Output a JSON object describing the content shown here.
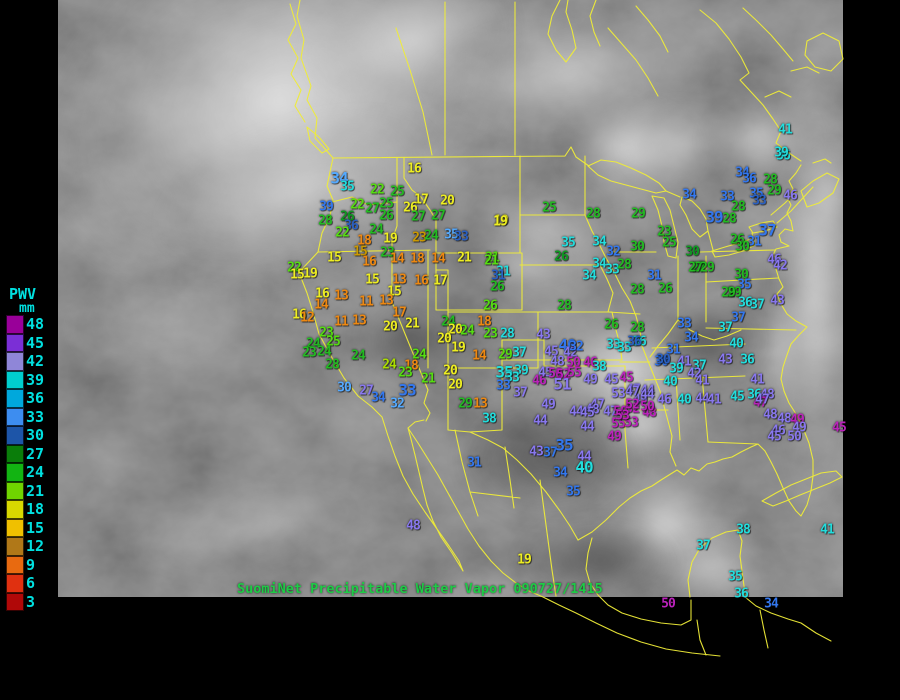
{
  "caption": "SuomiNet Precipitable Water Vapor 090727/1415",
  "colors": {
    "background": "#000000",
    "map_border_lines": "#efec38",
    "legend_text": "#00e0e0",
    "caption_text": "#1ecb46"
  },
  "legend": {
    "title": "PWV",
    "unit": "mm",
    "entries": [
      {
        "value": 48,
        "color": "#990099"
      },
      {
        "value": 45,
        "color": "#7b2fd6"
      },
      {
        "value": 42,
        "color": "#8f86d8"
      },
      {
        "value": 39,
        "color": "#00cfcf"
      },
      {
        "value": 36,
        "color": "#00a8dc"
      },
      {
        "value": 33,
        "color": "#3d8df0"
      },
      {
        "value": 30,
        "color": "#1d55a8"
      },
      {
        "value": 27,
        "color": "#0a7d0a"
      },
      {
        "value": 24,
        "color": "#12b412"
      },
      {
        "value": 21,
        "color": "#6fd400"
      },
      {
        "value": 18,
        "color": "#d8d800"
      },
      {
        "value": 15,
        "color": "#f0c000"
      },
      {
        "value": 12,
        "color": "#b07818"
      },
      {
        "value": 9,
        "color": "#e86a10"
      },
      {
        "value": 6,
        "color": "#e03010"
      },
      {
        "value": 3,
        "color": "#b00808"
      }
    ]
  },
  "palette": {
    "y": "#eeee22",
    "o": "#ee8811",
    "d": "#cc9900",
    "g": "#22bb22",
    "dg": "#0f9922",
    "bg": "#55dd11",
    "yg": "#aadd00",
    "c": "#22dddd",
    "lb": "#55aaff",
    "b": "#3377ee",
    "nv": "#2a5fc0",
    "v": "#8877ee",
    "m": "#bb22bb"
  },
  "stations": [
    [
      16,
      414,
      169,
      "y"
    ],
    [
      34,
      339,
      178,
      "lb",
      1
    ],
    [
      35,
      347,
      187,
      "c"
    ],
    [
      22,
      377,
      190,
      "bg"
    ],
    [
      25,
      397,
      192,
      "g"
    ],
    [
      17,
      421,
      200,
      "y"
    ],
    [
      20,
      447,
      201,
      "y"
    ],
    [
      22,
      357,
      205,
      "bg"
    ],
    [
      25,
      386,
      204,
      "g"
    ],
    [
      26,
      410,
      208,
      "y"
    ],
    [
      27,
      372,
      209,
      "g"
    ],
    [
      26,
      386,
      216,
      "g"
    ],
    [
      27,
      418,
      217,
      "g"
    ],
    [
      27,
      438,
      216,
      "g"
    ],
    [
      39,
      326,
      207,
      "b"
    ],
    [
      28,
      325,
      221,
      "g"
    ],
    [
      26,
      347,
      217,
      "dg"
    ],
    [
      36,
      351,
      226,
      "nv"
    ],
    [
      22,
      342,
      233,
      "bg"
    ],
    [
      24,
      376,
      230,
      "g"
    ],
    [
      18,
      364,
      241,
      "o"
    ],
    [
      19,
      390,
      239,
      "y"
    ],
    [
      23,
      419,
      238,
      "d"
    ],
    [
      24,
      431,
      236,
      "g"
    ],
    [
      35,
      451,
      235,
      "lb"
    ],
    [
      33,
      461,
      237,
      "nv"
    ],
    [
      19,
      501,
      221,
      "y"
    ],
    [
      15,
      360,
      252,
      "d"
    ],
    [
      23,
      387,
      253,
      "g"
    ],
    [
      15,
      334,
      258,
      "y"
    ],
    [
      16,
      369,
      262,
      "o"
    ],
    [
      14,
      397,
      259,
      "o"
    ],
    [
      18,
      417,
      259,
      "o"
    ],
    [
      14,
      438,
      259,
      "o"
    ],
    [
      21,
      464,
      258,
      "y"
    ],
    [
      21,
      492,
      258,
      "bg"
    ],
    [
      22,
      294,
      268,
      "bg"
    ],
    [
      15,
      297,
      275,
      "y"
    ],
    [
      19,
      310,
      274,
      "y"
    ],
    [
      31,
      503,
      272,
      "c"
    ],
    [
      15,
      372,
      280,
      "y"
    ],
    [
      13,
      399,
      280,
      "o"
    ],
    [
      16,
      421,
      281,
      "o"
    ],
    [
      17,
      440,
      281,
      "y"
    ],
    [
      16,
      322,
      294,
      "y"
    ],
    [
      13,
      341,
      296,
      "o"
    ],
    [
      15,
      394,
      292,
      "y"
    ],
    [
      14,
      321,
      305,
      "o"
    ],
    [
      11,
      366,
      302,
      "o"
    ],
    [
      13,
      386,
      301,
      "o"
    ],
    [
      16,
      299,
      315,
      "y"
    ],
    [
      12,
      307,
      318,
      "o"
    ],
    [
      11,
      341,
      322,
      "o"
    ],
    [
      13,
      359,
      321,
      "o"
    ],
    [
      17,
      399,
      313,
      "o"
    ],
    [
      20,
      390,
      327,
      "y"
    ],
    [
      21,
      412,
      324,
      "y"
    ],
    [
      23,
      326,
      333,
      "bg"
    ],
    [
      24,
      313,
      344,
      "g"
    ],
    [
      25,
      333,
      342,
      "bg"
    ],
    [
      23,
      309,
      353,
      "g"
    ],
    [
      24,
      324,
      352,
      "g"
    ],
    [
      28,
      332,
      365,
      "g"
    ],
    [
      24,
      358,
      356,
      "g"
    ],
    [
      24,
      389,
      365,
      "yg"
    ],
    [
      24,
      419,
      355,
      "bg"
    ],
    [
      18,
      411,
      366,
      "o"
    ],
    [
      23,
      405,
      373,
      "bg"
    ],
    [
      21,
      428,
      379,
      "bg"
    ],
    [
      33,
      407,
      390,
      "b",
      1
    ],
    [
      30,
      344,
      388,
      "lb"
    ],
    [
      27,
      366,
      391,
      "v"
    ],
    [
      34,
      378,
      398,
      "b"
    ],
    [
      32,
      397,
      404,
      "lb"
    ],
    [
      24,
      448,
      322,
      "g"
    ],
    [
      20,
      455,
      330,
      "y"
    ],
    [
      24,
      467,
      331,
      "bg"
    ],
    [
      20,
      444,
      339,
      "y"
    ],
    [
      19,
      458,
      348,
      "y"
    ],
    [
      14,
      479,
      356,
      "o"
    ],
    [
      20,
      450,
      371,
      "y"
    ],
    [
      20,
      455,
      385,
      "y"
    ],
    [
      29,
      465,
      404,
      "g"
    ],
    [
      13,
      480,
      404,
      "o"
    ],
    [
      18,
      484,
      322,
      "o"
    ],
    [
      23,
      490,
      334,
      "bg"
    ],
    [
      28,
      507,
      334,
      "c"
    ],
    [
      29,
      505,
      355,
      "bg"
    ],
    [
      37,
      519,
      353,
      "c"
    ],
    [
      35,
      504,
      372,
      "c",
      1
    ],
    [
      39,
      521,
      371,
      "c"
    ],
    [
      33,
      512,
      378,
      "c"
    ],
    [
      33,
      503,
      386,
      "b"
    ],
    [
      37,
      520,
      393,
      "v"
    ],
    [
      46,
      539,
      381,
      "m"
    ],
    [
      49,
      548,
      405,
      "v"
    ],
    [
      38,
      489,
      419,
      "c"
    ],
    [
      44,
      540,
      421,
      "v"
    ],
    [
      31,
      474,
      463,
      "b"
    ],
    [
      43,
      536,
      452,
      "v"
    ],
    [
      37,
      550,
      453,
      "b"
    ],
    [
      35,
      564,
      445,
      "b",
      1
    ],
    [
      34,
      560,
      473,
      "b"
    ],
    [
      40,
      584,
      467,
      "c",
      1
    ],
    [
      44,
      584,
      457,
      "v"
    ],
    [
      19,
      524,
      560,
      "y"
    ],
    [
      48,
      413,
      526,
      "v"
    ],
    [
      35,
      573,
      492,
      "b"
    ],
    [
      43,
      543,
      335,
      "v"
    ],
    [
      45,
      551,
      352,
      "v"
    ],
    [
      40,
      567,
      345,
      "b",
      1
    ],
    [
      42,
      570,
      353,
      "v"
    ],
    [
      48,
      557,
      362,
      "v"
    ],
    [
      50,
      573,
      363,
      "m"
    ],
    [
      46,
      590,
      363,
      "m"
    ],
    [
      38,
      599,
      367,
      "c"
    ],
    [
      45,
      545,
      373,
      "v"
    ],
    [
      50,
      555,
      374,
      "m"
    ],
    [
      52,
      563,
      375,
      "m"
    ],
    [
      55,
      574,
      373,
      "m"
    ],
    [
      51,
      562,
      384,
      "v",
      1
    ],
    [
      49,
      590,
      380,
      "v"
    ],
    [
      45,
      611,
      380,
      "v"
    ],
    [
      33,
      613,
      345,
      "c"
    ],
    [
      33,
      624,
      348,
      "c"
    ],
    [
      36,
      639,
      342,
      "c"
    ],
    [
      30,
      661,
      362,
      "b"
    ],
    [
      53,
      618,
      394,
      "v"
    ],
    [
      47,
      633,
      390,
      "v"
    ],
    [
      44,
      647,
      391,
      "v"
    ],
    [
      49,
      640,
      400,
      "v"
    ],
    [
      47,
      597,
      405,
      "v"
    ],
    [
      48,
      592,
      410,
      "v"
    ],
    [
      44,
      576,
      412,
      "v"
    ],
    [
      45,
      587,
      413,
      "v"
    ],
    [
      47,
      610,
      412,
      "v"
    ],
    [
      50,
      620,
      412,
      "m"
    ],
    [
      52,
      632,
      409,
      "m"
    ],
    [
      48,
      649,
      413,
      "m"
    ],
    [
      55,
      618,
      424,
      "m"
    ],
    [
      53,
      631,
      423,
      "m"
    ],
    [
      49,
      614,
      437,
      "m"
    ],
    [
      44,
      587,
      427,
      "v"
    ],
    [
      25,
      549,
      208,
      "g"
    ],
    [
      28,
      593,
      214,
      "g"
    ],
    [
      29,
      638,
      214,
      "g"
    ],
    [
      19,
      500,
      222,
      "y"
    ],
    [
      23,
      664,
      232,
      "g"
    ],
    [
      25,
      669,
      243,
      "g"
    ],
    [
      35,
      568,
      243,
      "c"
    ],
    [
      34,
      599,
      242,
      "c"
    ],
    [
      32,
      613,
      252,
      "b"
    ],
    [
      30,
      637,
      247,
      "g"
    ],
    [
      26,
      561,
      257,
      "dg"
    ],
    [
      34,
      599,
      264,
      "c"
    ],
    [
      33,
      612,
      270,
      "c"
    ],
    [
      28,
      624,
      265,
      "g"
    ],
    [
      34,
      589,
      276,
      "c"
    ],
    [
      31,
      654,
      276,
      "b"
    ],
    [
      21,
      491,
      261,
      "bg"
    ],
    [
      31,
      498,
      276,
      "nv"
    ],
    [
      26,
      497,
      287,
      "g"
    ],
    [
      28,
      637,
      290,
      "g"
    ],
    [
      26,
      665,
      289,
      "g"
    ],
    [
      26,
      490,
      306,
      "bg"
    ],
    [
      28,
      564,
      306,
      "g"
    ],
    [
      26,
      611,
      325,
      "g"
    ],
    [
      32,
      576,
      347,
      "b"
    ],
    [
      30,
      692,
      252,
      "dg"
    ],
    [
      27,
      698,
      268,
      "g"
    ],
    [
      36,
      783,
      156,
      "c"
    ],
    [
      34,
      689,
      195,
      "b"
    ],
    [
      34,
      742,
      173,
      "b"
    ],
    [
      36,
      749,
      179,
      "b"
    ],
    [
      28,
      770,
      180,
      "g"
    ],
    [
      29,
      774,
      191,
      "g"
    ],
    [
      46,
      790,
      196,
      "v"
    ],
    [
      33,
      727,
      197,
      "b"
    ],
    [
      35,
      756,
      194,
      "b"
    ],
    [
      33,
      759,
      201,
      "nv"
    ],
    [
      28,
      738,
      207,
      "g"
    ],
    [
      39,
      714,
      217,
      "b",
      1
    ],
    [
      28,
      729,
      219,
      "g"
    ],
    [
      37,
      767,
      230,
      "b",
      1
    ],
    [
      26,
      737,
      240,
      "g"
    ],
    [
      31,
      754,
      242,
      "b"
    ],
    [
      30,
      742,
      247,
      "g"
    ],
    [
      27,
      695,
      268,
      "g"
    ],
    [
      29,
      707,
      268,
      "g"
    ],
    [
      46,
      774,
      260,
      "v"
    ],
    [
      42,
      780,
      266,
      "v"
    ],
    [
      30,
      741,
      275,
      "g"
    ],
    [
      35,
      744,
      285,
      "b"
    ],
    [
      29,
      734,
      293,
      "g"
    ],
    [
      41,
      785,
      130,
      "c"
    ],
    [
      39,
      781,
      153,
      "c"
    ],
    [
      29,
      728,
      293,
      "g"
    ],
    [
      36,
      745,
      303,
      "c"
    ],
    [
      37,
      757,
      305,
      "c"
    ],
    [
      43,
      777,
      301,
      "v"
    ],
    [
      37,
      738,
      318,
      "b"
    ],
    [
      33,
      684,
      324,
      "b"
    ],
    [
      37,
      725,
      328,
      "c"
    ],
    [
      28,
      637,
      328,
      "g"
    ],
    [
      36,
      634,
      342,
      "nv"
    ],
    [
      34,
      691,
      338,
      "b"
    ],
    [
      40,
      736,
      344,
      "c"
    ],
    [
      31,
      673,
      350,
      "b"
    ],
    [
      30,
      663,
      360,
      "nv"
    ],
    [
      41,
      684,
      362,
      "v"
    ],
    [
      37,
      699,
      366,
      "c"
    ],
    [
      39,
      676,
      369,
      "c"
    ],
    [
      42,
      694,
      374,
      "v"
    ],
    [
      43,
      725,
      360,
      "v"
    ],
    [
      36,
      747,
      360,
      "c"
    ],
    [
      45,
      626,
      378,
      "m"
    ],
    [
      40,
      670,
      382,
      "c"
    ],
    [
      41,
      702,
      381,
      "v"
    ],
    [
      41,
      757,
      380,
      "v"
    ],
    [
      47,
      632,
      392,
      "v"
    ],
    [
      44,
      647,
      395,
      "v"
    ],
    [
      46,
      664,
      400,
      "v"
    ],
    [
      40,
      684,
      400,
      "c"
    ],
    [
      44,
      702,
      399,
      "v"
    ],
    [
      41,
      714,
      400,
      "v"
    ],
    [
      45,
      737,
      397,
      "c"
    ],
    [
      36,
      754,
      395,
      "c"
    ],
    [
      48,
      767,
      395,
      "v"
    ],
    [
      47,
      760,
      403,
      "m"
    ],
    [
      50,
      647,
      407,
      "m"
    ],
    [
      52,
      632,
      405,
      "m"
    ],
    [
      53,
      622,
      416,
      "m"
    ],
    [
      48,
      770,
      415,
      "v"
    ],
    [
      48,
      784,
      419,
      "v"
    ],
    [
      49,
      797,
      420,
      "m"
    ],
    [
      49,
      799,
      428,
      "v"
    ],
    [
      46,
      778,
      431,
      "v"
    ],
    [
      45,
      774,
      437,
      "v"
    ],
    [
      50,
      794,
      437,
      "v"
    ],
    [
      45,
      839,
      428,
      "m"
    ],
    [
      47,
      762,
      400,
      "v"
    ],
    [
      37,
      703,
      546,
      "c"
    ],
    [
      38,
      743,
      530,
      "c"
    ],
    [
      41,
      827,
      530,
      "c"
    ],
    [
      35,
      735,
      577,
      "c"
    ],
    [
      36,
      741,
      594,
      "c"
    ],
    [
      50,
      668,
      604,
      "m"
    ],
    [
      34,
      771,
      604,
      "b"
    ]
  ]
}
